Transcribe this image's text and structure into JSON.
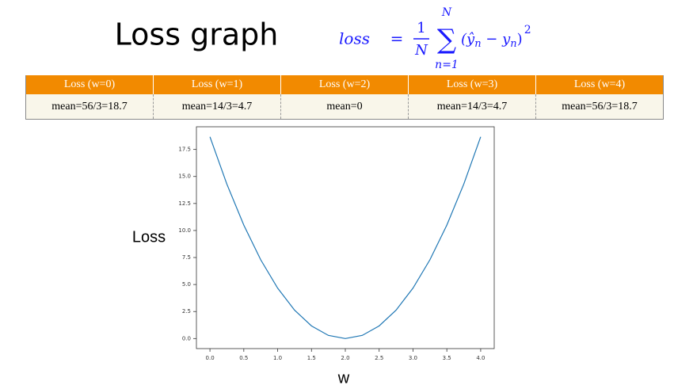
{
  "slide": {
    "title": "Loss graph",
    "formula": {
      "lhs": "loss",
      "equals": "=",
      "numerator": "1",
      "denominator": "N",
      "sum_symbol": "∑",
      "sum_upper": "N",
      "sum_lower": "n=1",
      "term": [
        "(ŷ",
        "n",
        " − y",
        "n",
        ")"
      ],
      "exponent": "2"
    }
  },
  "table": {
    "header": [
      "Loss (w=0)",
      "Loss (w=1)",
      "Loss (w=2)",
      "Loss (w=3)",
      "Loss (w=4)"
    ],
    "rows": [
      [
        "mean=56/3=18.7",
        "mean=14/3=4.7",
        "mean=0",
        "mean=14/3=4.7",
        "mean=56/3=18.7"
      ]
    ]
  },
  "chart_data": {
    "type": "line",
    "x_label": "w",
    "y_label": "Loss",
    "x": [
      0,
      0.25,
      0.5,
      0.75,
      1,
      1.25,
      1.5,
      1.75,
      2,
      2.25,
      2.5,
      2.75,
      3,
      3.25,
      3.5,
      3.75,
      4
    ],
    "values": [
      18.67,
      14.29,
      10.5,
      7.29,
      4.67,
      2.63,
      1.17,
      0.29,
      0,
      0.29,
      1.17,
      2.63,
      4.67,
      7.29,
      10.5,
      14.29,
      18.67
    ],
    "color": "#1f77b4",
    "xlim": [
      -0.2,
      4.2
    ],
    "ylim": [
      -0.93,
      19.6
    ],
    "xticks": [
      {
        "value": 0,
        "label": "0.0"
      },
      0.5,
      {
        "value": 1,
        "label": "1.0"
      },
      1.5,
      {
        "value": 2,
        "label": "2.0"
      },
      2.5,
      {
        "value": 3,
        "label": "3.0"
      },
      3.5,
      {
        "value": 4,
        "label": "4.0"
      }
    ],
    "yticks": [
      {
        "value": 0,
        "label": "0.0"
      },
      2.5,
      {
        "value": 5,
        "label": "5.0"
      },
      7.5,
      {
        "value": 10,
        "label": "10.0"
      },
      12.5,
      {
        "value": 15,
        "label": "15.0"
      },
      17.5
    ]
  }
}
